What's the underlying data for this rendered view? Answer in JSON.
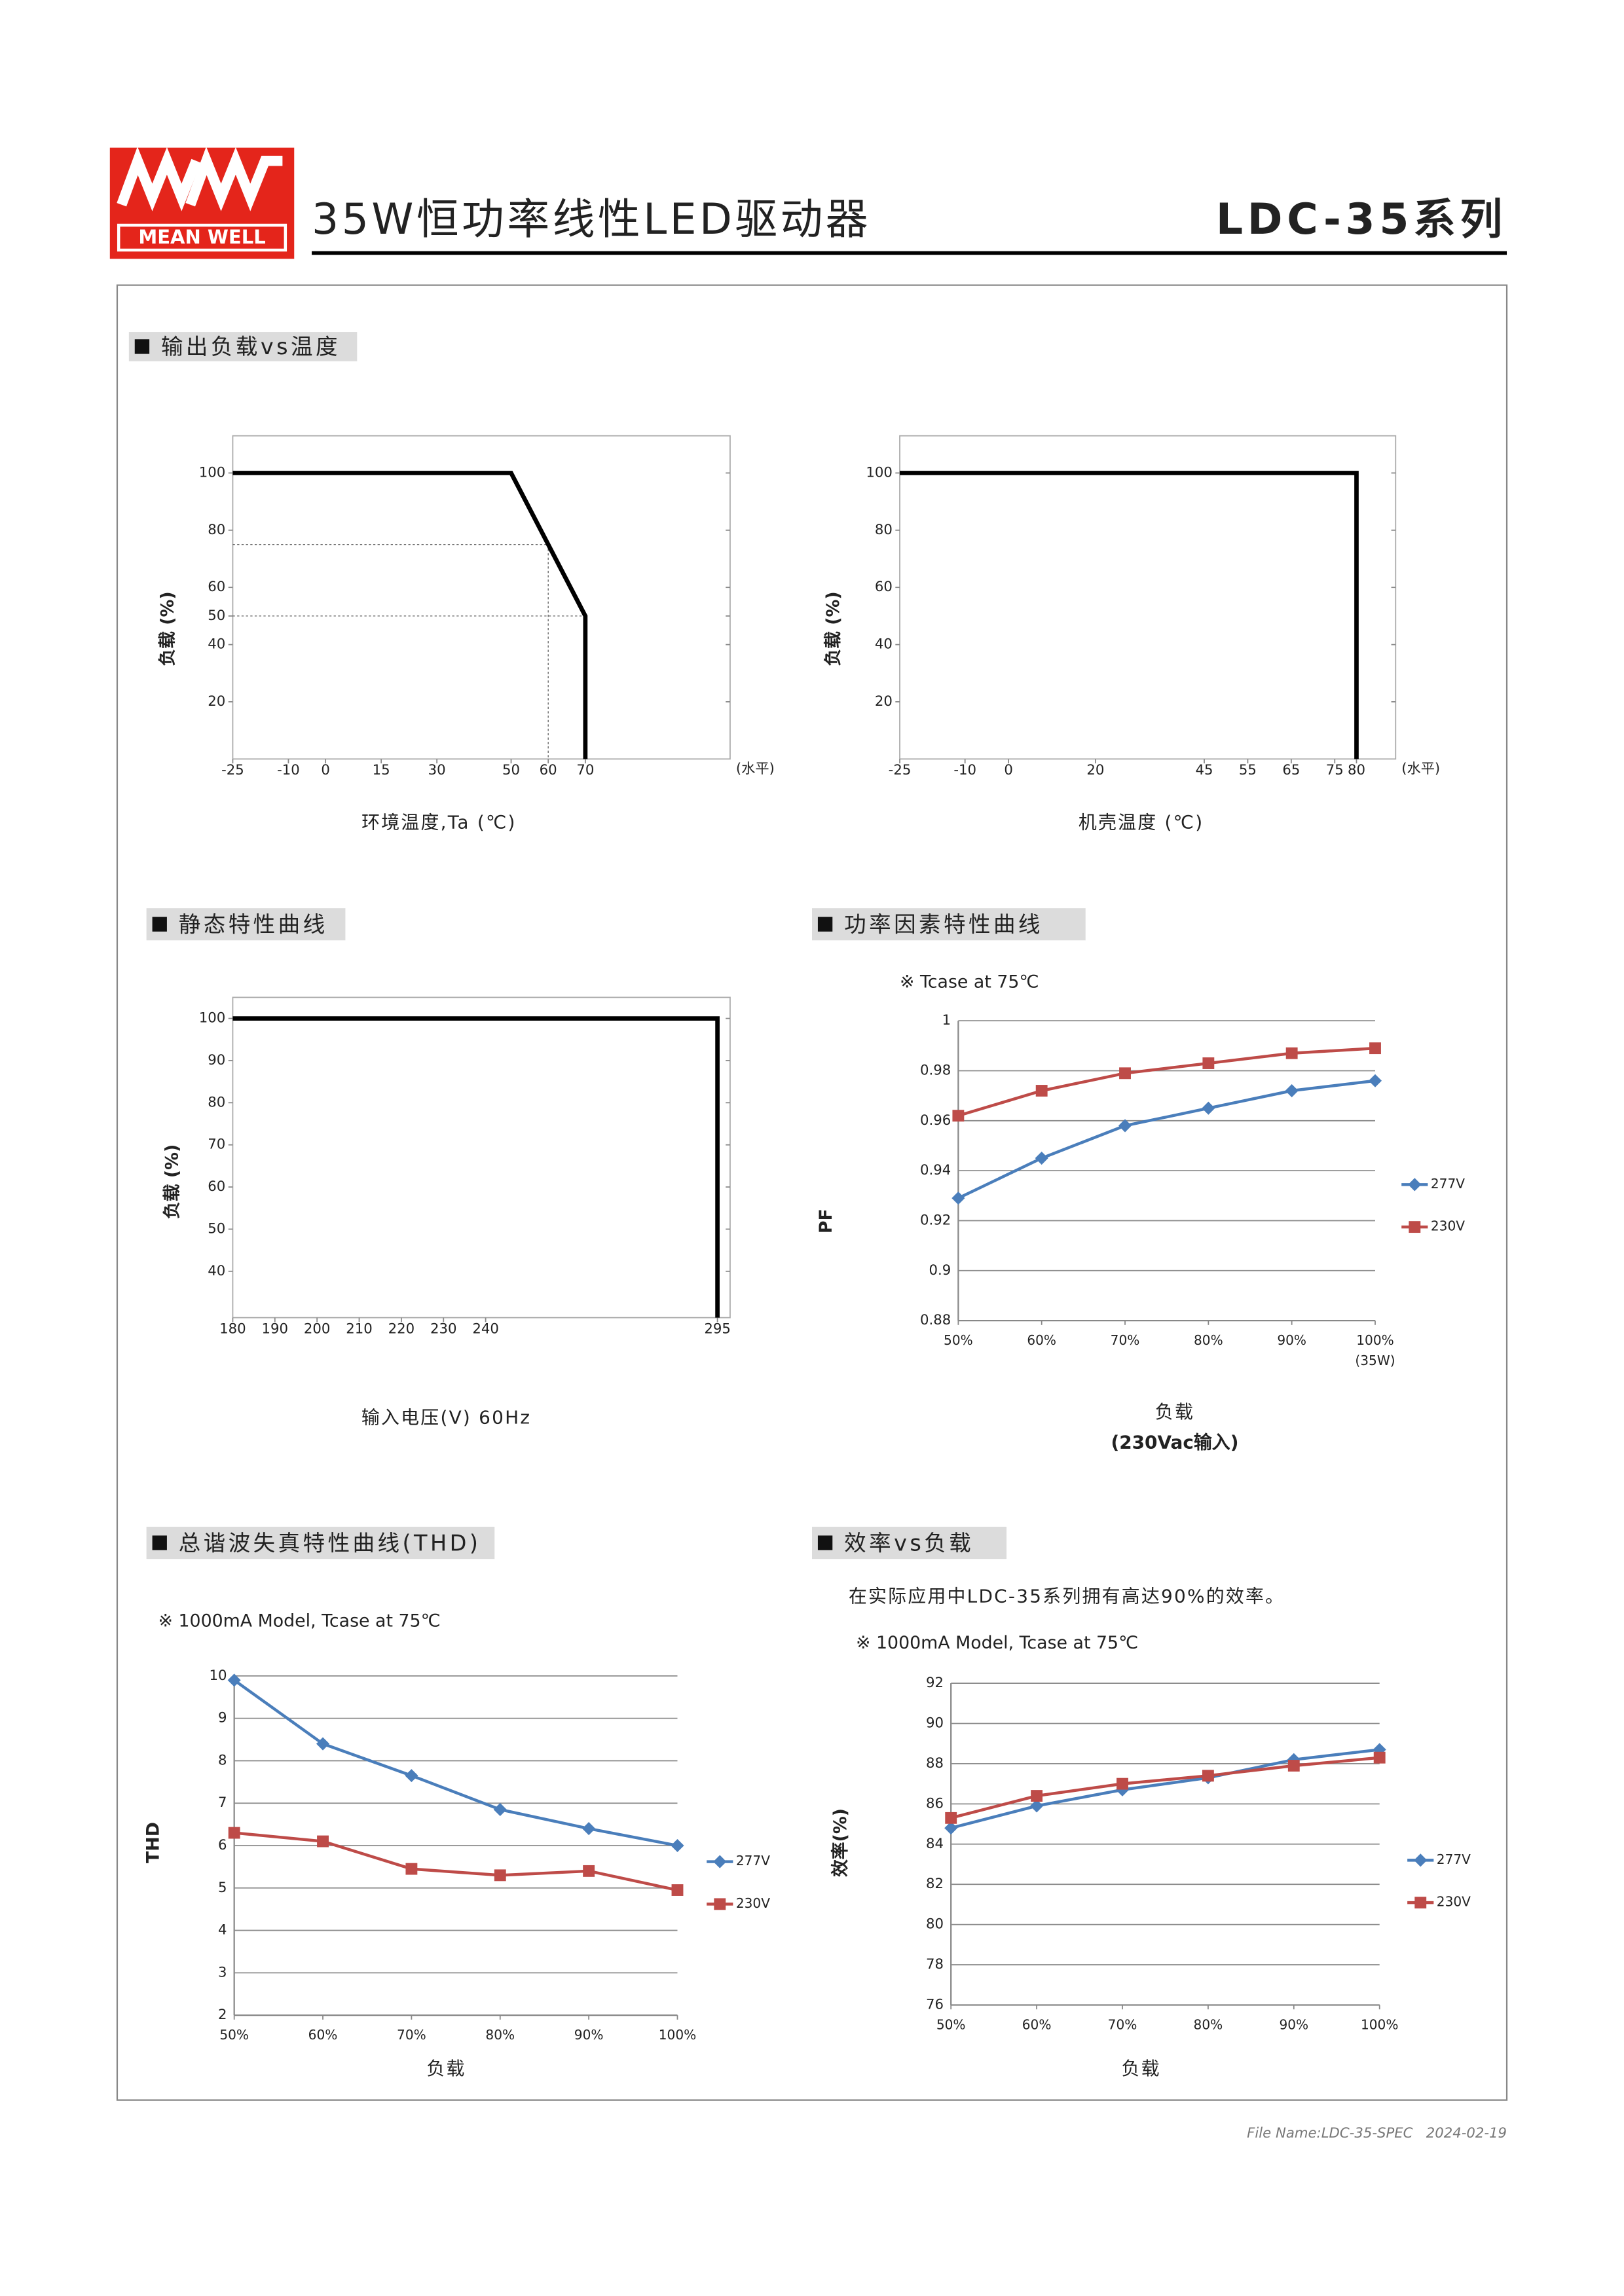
{
  "header": {
    "logo": "MEAN WELL",
    "title": "35W恒功率线性LED驱动器",
    "model": "LDC-35系列"
  },
  "footer": "File Name:LDC-35-SPEC   2024-02-19",
  "chart_data": [
    {
      "type": "line",
      "title": "输出负载vs温度",
      "y_label": "负载 (%)",
      "x_label": "环境温度,Ta (℃)",
      "x_unit": "(水平)",
      "x": [
        -25,
        50,
        60,
        70,
        70
      ],
      "values": [
        100,
        100,
        75,
        50,
        0
      ],
      "color": "#000000",
      "xlim": [
        -25,
        109
      ],
      "xticks": [
        -25,
        -10,
        0,
        15,
        30,
        50,
        60,
        70
      ],
      "ylim": [
        0,
        113
      ],
      "yticks": [
        20,
        40,
        50,
        60,
        80,
        100
      ],
      "grid": false,
      "guides": true
    },
    {
      "type": "line",
      "y_label": "负载 (%)",
      "x_label": "机壳温度 (℃)",
      "x_unit": "(水平)",
      "x": [
        -25,
        80,
        80
      ],
      "values": [
        100,
        100,
        0
      ],
      "color": "#000000",
      "xlim": [
        -25,
        89
      ],
      "xticks": [
        -25,
        -10,
        0,
        20,
        45,
        55,
        65,
        75,
        80
      ],
      "ylim": [
        0,
        113
      ],
      "yticks": [
        20,
        40,
        60,
        80,
        100
      ],
      "grid": false
    },
    {
      "type": "line",
      "title": "静态特性曲线",
      "y_label": "负载 (%)",
      "x_label": "输入电压(V) 60Hz",
      "x": [
        180,
        295,
        295
      ],
      "values": [
        100,
        100,
        29
      ],
      "color": "#000000",
      "xlim": [
        180,
        298
      ],
      "xticks": [
        180,
        190,
        200,
        210,
        220,
        230,
        240,
        295
      ],
      "ylim": [
        29,
        105
      ],
      "yticks": [
        40,
        50,
        60,
        70,
        80,
        90,
        100
      ],
      "grid": false
    },
    {
      "type": "line",
      "title": "功率因素特性曲线",
      "note": "※ Tcase at 75℃",
      "y_label": "PF",
      "x_label": "负载",
      "x_label2": "(230Vac输入)",
      "x_note": "(35W)",
      "categories": [
        "50%",
        "60%",
        "70%",
        "80%",
        "90%",
        "100%"
      ],
      "series": [
        {
          "name": "277V",
          "color": "#4a7ebb",
          "marker": "diamond",
          "values": [
            0.929,
            0.945,
            0.958,
            0.965,
            0.972,
            0.976
          ]
        },
        {
          "name": "230V",
          "color": "#be4b48",
          "marker": "square",
          "values": [
            0.962,
            0.972,
            0.979,
            0.983,
            0.987,
            0.989
          ]
        }
      ],
      "ylim": [
        0.88,
        1
      ],
      "yticks": [
        0.88,
        0.9,
        0.92,
        0.94,
        0.96,
        0.98,
        1
      ],
      "grid": true
    },
    {
      "type": "line",
      "title": "总谐波失真特性曲线(THD)",
      "note": "※ 1000mA Model, Tcase at 75℃",
      "y_label": "THD",
      "x_label": "负载",
      "categories": [
        "50%",
        "60%",
        "70%",
        "80%",
        "90%",
        "100%"
      ],
      "series": [
        {
          "name": "277V",
          "color": "#4a7ebb",
          "marker": "diamond",
          "values": [
            9.9,
            8.4,
            7.65,
            6.85,
            6.4,
            6.0
          ]
        },
        {
          "name": "230V",
          "color": "#be4b48",
          "marker": "square",
          "values": [
            6.3,
            6.1,
            5.45,
            5.3,
            5.4,
            4.95
          ]
        }
      ],
      "ylim": [
        2,
        10
      ],
      "yticks": [
        2,
        3,
        4,
        5,
        6,
        7,
        8,
        9,
        10
      ],
      "grid": true
    },
    {
      "type": "line",
      "title": "效率vs负载",
      "description": "在实际应用中LDC-35系列拥有高达90%的效率。",
      "note": "※ 1000mA Model, Tcase at 75℃",
      "y_label": "效率(%)",
      "x_label": "负载",
      "categories": [
        "50%",
        "60%",
        "70%",
        "80%",
        "90%",
        "100%"
      ],
      "series": [
        {
          "name": "277V",
          "color": "#4a7ebb",
          "marker": "diamond",
          "values": [
            84.8,
            85.9,
            86.7,
            87.3,
            88.2,
            88.7
          ]
        },
        {
          "name": "230V",
          "color": "#be4b48",
          "marker": "square",
          "values": [
            85.3,
            86.4,
            87.0,
            87.4,
            87.9,
            88.3
          ]
        }
      ],
      "ylim": [
        76,
        92
      ],
      "yticks": [
        76,
        78,
        80,
        82,
        84,
        86,
        88,
        90,
        92
      ],
      "grid": true
    }
  ]
}
